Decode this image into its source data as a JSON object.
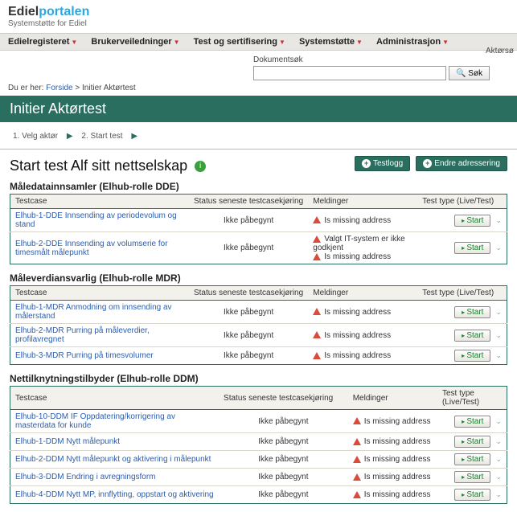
{
  "brand": {
    "pre": "Ediel",
    "post": "portalen",
    "sub": "Systemstøtte for Ediel"
  },
  "nav": {
    "items": [
      "Edielregisteret",
      "Brukerveiledninger",
      "Test og sertifisering",
      "Systemstøtte",
      "Administrasjon"
    ]
  },
  "search": {
    "label": "Dokumentsøk",
    "button": "Søk",
    "placeholder": ""
  },
  "right_label": "Aktørsø",
  "breadcrumb": {
    "prefix": "Du er her:",
    "link": "Forside",
    "sep": ">",
    "current": "Initier Aktørtest"
  },
  "title": "Initier Aktørtest",
  "workflow": {
    "step1": "1. Velg aktør",
    "step2": "2. Start test"
  },
  "page_h1": "Start test Alf sitt nettselskap",
  "actions": {
    "testlogg": "Testlogg",
    "endre": "Endre adressering"
  },
  "columns": {
    "testcase": "Testcase",
    "status": "Status seneste testcasekjøring",
    "meldinger": "Meldinger",
    "testtype": "Test type (Live/Test)"
  },
  "status_text": "Ikke påbegynt",
  "msg_missing": "Is missing address",
  "msg_valg1": "Valgt IT-system er ikke godkjent",
  "start_label": "Start",
  "sections": [
    {
      "heading": "Måledatainnsamler (Elhub-rolle DDE)",
      "rows": [
        {
          "name": "Elhub-1-DDE Innsending av periodevolum og stand",
          "msgs": [
            "missing"
          ]
        },
        {
          "name": "Elhub-2-DDE Innsending av volumserie for timesmålt målepunkt",
          "msgs": [
            "valg",
            "missing"
          ]
        }
      ]
    },
    {
      "heading": "Måleverdiansvarlig (Elhub-rolle MDR)",
      "rows": [
        {
          "name": "Elhub-1-MDR Anmodning om innsending av målerstand",
          "msgs": [
            "missing"
          ]
        },
        {
          "name": "Elhub-2-MDR Purring på måleverdier, profilavregnet",
          "msgs": [
            "missing"
          ]
        },
        {
          "name": "Elhub-3-MDR Purring på timesvolumer",
          "msgs": [
            "missing"
          ]
        }
      ]
    },
    {
      "heading": "Nettilknytningstilbyder (Elhub-rolle DDM)",
      "rows": [
        {
          "name": "Elhub-10-DDM IF Oppdatering/korrigering av masterdata for kunde",
          "msgs": [
            "missing"
          ]
        },
        {
          "name": "Elhub-1-DDM Nytt målepunkt",
          "msgs": [
            "missing"
          ]
        },
        {
          "name": "Elhub-2-DDM Nytt målepunkt og aktivering i målepunkt",
          "msgs": [
            "missing"
          ]
        },
        {
          "name": "Elhub-3-DDM Endring i avregningsform",
          "msgs": [
            "missing"
          ]
        },
        {
          "name": "Elhub-4-DDM Nytt MP, innflytting, oppstart og aktivering",
          "msgs": [
            "missing"
          ]
        }
      ]
    }
  ],
  "colors": {
    "header_green": "#2a6e5f",
    "link_blue": "#2a5db0",
    "warn_red": "#d94b3a",
    "start_green": "#1a7f2e"
  }
}
